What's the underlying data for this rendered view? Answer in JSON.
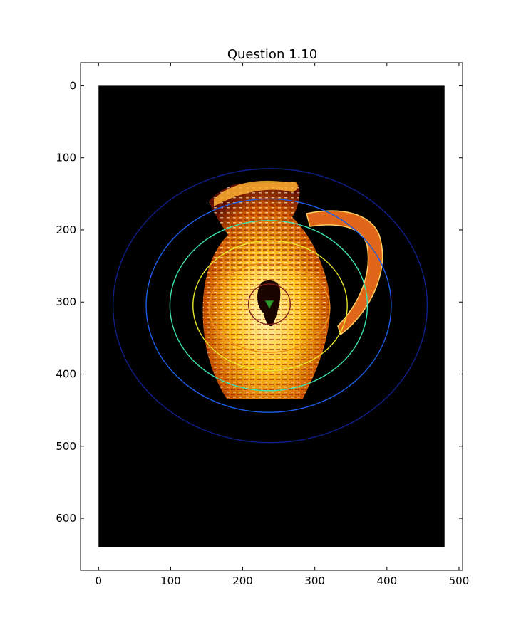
{
  "chart_data": {
    "type": "heatmap",
    "title": "Question 1.10",
    "xlabel": "",
    "ylabel": "",
    "xlim": [
      -25,
      505
    ],
    "ylim": [
      672,
      -32
    ],
    "y_inverted": true,
    "grid": false,
    "image_extent": {
      "x": [
        0,
        480
      ],
      "y": [
        0,
        640
      ]
    },
    "xticks": [
      0,
      100,
      200,
      300,
      400,
      500
    ],
    "yticks": [
      0,
      100,
      200,
      300,
      400,
      500,
      600
    ],
    "colormap": "hot",
    "background_color": "#000000",
    "image_subject": "jug with handle",
    "contours": [
      {
        "cx": 237,
        "cy": 303,
        "rx": 29,
        "ry": 28,
        "color": "#7f1f1f"
      },
      {
        "cx": 237,
        "cy": 308,
        "rx": 84,
        "ry": 62,
        "color": "#f08a1c"
      },
      {
        "cx": 238,
        "cy": 305,
        "rx": 107,
        "ry": 90,
        "color": "#e7e62e"
      },
      {
        "cx": 236,
        "cy": 305,
        "rx": 137,
        "ry": 118,
        "color": "#3ee0b0"
      },
      {
        "cx": 236,
        "cy": 305,
        "rx": 170,
        "ry": 148,
        "color": "#1c5de6"
      },
      {
        "cx": 238,
        "cy": 305,
        "rx": 218,
        "ry": 190,
        "color": "#0f1f8a"
      }
    ],
    "marker": {
      "x": 237,
      "y": 303,
      "shape": "triangle-down",
      "color": "#2e9a2e"
    }
  }
}
